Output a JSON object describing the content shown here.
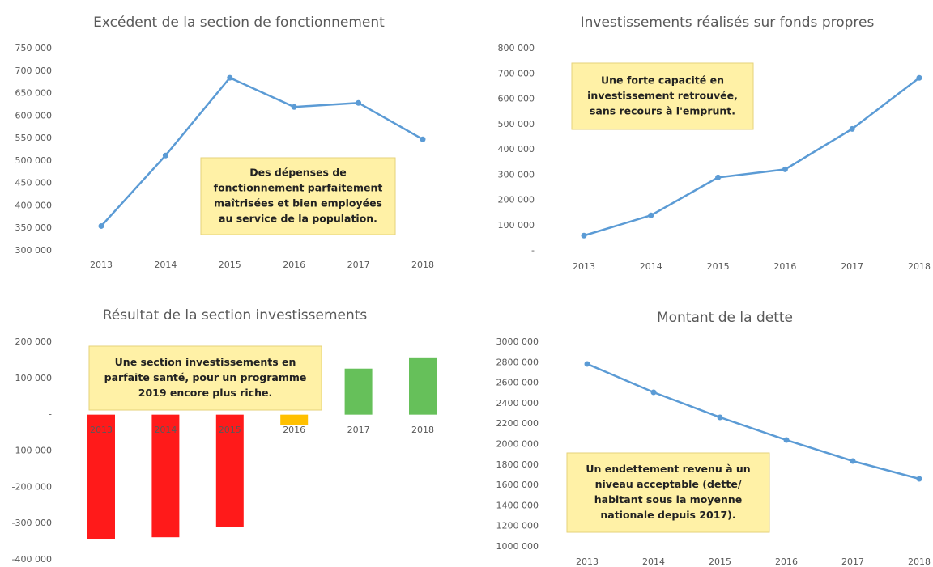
{
  "chart_data": [
    {
      "type": "line",
      "title": "Excédent de la section de fonctionnement",
      "categories": [
        "2013",
        "2014",
        "2015",
        "2016",
        "2017",
        "2018"
      ],
      "values": [
        355000,
        512000,
        685000,
        620000,
        629000,
        548000
      ],
      "color": "#5b9bd5",
      "ylim": [
        300000,
        750000
      ],
      "yticks": [
        {
          "value": 300000,
          "label": "300 000"
        },
        {
          "value": 350000,
          "label": "350 000"
        },
        {
          "value": 400000,
          "label": "400 000"
        },
        {
          "value": 450000,
          "label": "450 000"
        },
        {
          "value": 500000,
          "label": "500 000"
        },
        {
          "value": 550000,
          "label": "550 000"
        },
        {
          "value": 600000,
          "label": "600 000"
        },
        {
          "value": 650000,
          "label": "650 000"
        },
        {
          "value": 700000,
          "label": "700 000"
        },
        {
          "value": 750000,
          "label": "750 000"
        }
      ],
      "annotation": [
        "Des dépenses de",
        "fonctionnement parfaitement",
        "maîtrisées et bien employées",
        "au service de la population."
      ]
    },
    {
      "type": "line",
      "title": "Investissements réalisés sur fonds propres",
      "categories": [
        "2013",
        "2014",
        "2015",
        "2016",
        "2017",
        "2018"
      ],
      "values": [
        60000,
        140000,
        290000,
        322000,
        482000,
        684000
      ],
      "color": "#5b9bd5",
      "ylim": [
        0,
        800000
      ],
      "yticks": [
        {
          "value": 0,
          "label": "-"
        },
        {
          "value": 100000,
          "label": "100 000"
        },
        {
          "value": 200000,
          "label": "200 000"
        },
        {
          "value": 300000,
          "label": "300 000"
        },
        {
          "value": 400000,
          "label": "400 000"
        },
        {
          "value": 500000,
          "label": "500 000"
        },
        {
          "value": 600000,
          "label": "600 000"
        },
        {
          "value": 700000,
          "label": "700 000"
        },
        {
          "value": 800000,
          "label": "800 000"
        }
      ],
      "annotation": [
        "Une forte capacité en",
        "investissement retrouvée,",
        "sans recours à l'emprunt."
      ]
    },
    {
      "type": "bar",
      "title": "Résultat de la section investissements",
      "categories": [
        "2013",
        "2014",
        "2015",
        "2016",
        "2017",
        "2018"
      ],
      "values": [
        -343000,
        -338000,
        -310000,
        -28000,
        127000,
        158000
      ],
      "colors": [
        "#ff1a1a",
        "#ff1a1a",
        "#ff1a1a",
        "#ffc000",
        "#66c05a",
        "#66c05a"
      ],
      "ylim": [
        -400000,
        200000
      ],
      "yticks": [
        {
          "value": -400000,
          "label": "-400 000"
        },
        {
          "value": -300000,
          "label": "-300 000"
        },
        {
          "value": -200000,
          "label": "-200 000"
        },
        {
          "value": -100000,
          "label": "-100 000"
        },
        {
          "value": 0,
          "label": "-"
        },
        {
          "value": 100000,
          "label": "100 000"
        },
        {
          "value": 200000,
          "label": "200 000"
        }
      ],
      "annotation": [
        "Une section investissements en",
        "parfaite santé, pour un programme",
        "2019 encore plus riche."
      ]
    },
    {
      "type": "line",
      "title": "Montant de la dette",
      "categories": [
        "2013",
        "2014",
        "2015",
        "2016",
        "2017",
        "2018"
      ],
      "values": [
        2787000,
        2510000,
        2265000,
        2043000,
        1838000,
        1664000
      ],
      "color": "#5b9bd5",
      "ylim": [
        1000000,
        3000000
      ],
      "yticks": [
        {
          "value": 1000000,
          "label": "1000 000"
        },
        {
          "value": 1200000,
          "label": "1200 000"
        },
        {
          "value": 1400000,
          "label": "1400 000"
        },
        {
          "value": 1600000,
          "label": "1600 000"
        },
        {
          "value": 1800000,
          "label": "1800 000"
        },
        {
          "value": 2000000,
          "label": "2000 000"
        },
        {
          "value": 2200000,
          "label": "2200 000"
        },
        {
          "value": 2400000,
          "label": "2400 000"
        },
        {
          "value": 2600000,
          "label": "2600 000"
        },
        {
          "value": 2800000,
          "label": "2800 000"
        },
        {
          "value": 3000000,
          "label": "3000 000"
        }
      ],
      "annotation": [
        "Un endettement revenu à un",
        "niveau acceptable (dette/",
        "habitant sous la moyenne",
        "nationale depuis 2017)."
      ]
    }
  ]
}
